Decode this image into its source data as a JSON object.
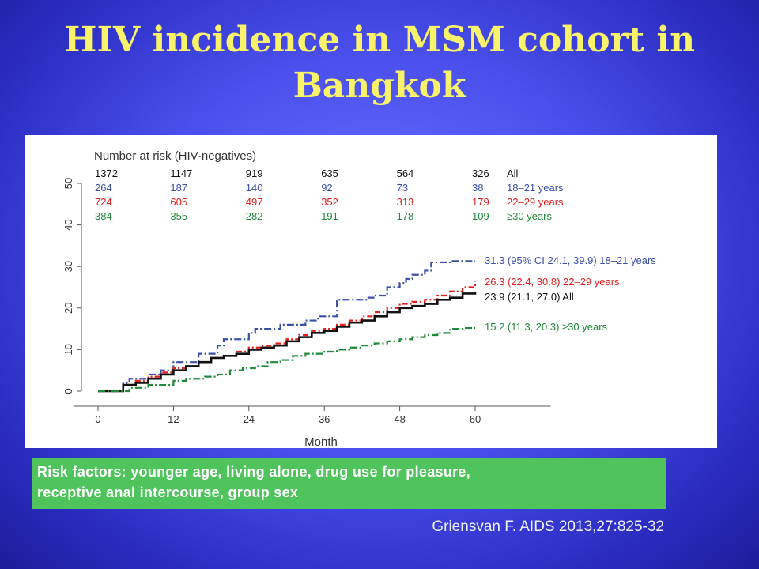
{
  "slide": {
    "title_line1": "HIV incidence in MSM cohort in",
    "title_line2": "Bangkok",
    "risk_factors_line1": "Risk factors: younger age, living alone, drug use for pleasure,",
    "risk_factors_line2": "receptive anal intercourse, group sex",
    "citation": "Griensvan F. AIDS 2013,27:825-32",
    "colors": {
      "title": "#f8f36b",
      "risk_box": "#4fc45c"
    }
  },
  "chart_data": {
    "type": "line",
    "xlabel": "Month",
    "ylabel": "",
    "xlim": [
      0,
      72
    ],
    "ylim": [
      0,
      50
    ],
    "x_ticks": [
      0,
      12,
      24,
      36,
      48,
      60
    ],
    "y_ticks": [
      0,
      10,
      20,
      30,
      40,
      50
    ],
    "risk_table": {
      "title": "Number at risk (HIV-negatives)",
      "rows": [
        {
          "values": [
            "1372",
            "1147",
            "919",
            "635",
            "564",
            "326"
          ],
          "label": "All",
          "color": "#111111"
        },
        {
          "values": [
            "264",
            "187",
            "140",
            "92",
            "73",
            "38"
          ],
          "label": "18–21 years",
          "color": "#3a4fa8"
        },
        {
          "values": [
            "724",
            "605",
            "497",
            "352",
            "313",
            "179"
          ],
          "label": "22–29 years",
          "color": "#e3201c"
        },
        {
          "values": [
            "384",
            "355",
            "282",
            "191",
            "178",
            "109"
          ],
          "label": "≥30 years",
          "color": "#1f8a3a"
        }
      ]
    },
    "series": [
      {
        "color": "#3a4fa8",
        "dash": "9 3 2 3",
        "end_label": "31.3 (95% CI 24.1, 39.9) 18–21 years",
        "points": [
          [
            0,
            0
          ],
          [
            3,
            0
          ],
          [
            4,
            2
          ],
          [
            5,
            3
          ],
          [
            8,
            4
          ],
          [
            10,
            5
          ],
          [
            12,
            7
          ],
          [
            15,
            7
          ],
          [
            16,
            9
          ],
          [
            19,
            9
          ],
          [
            19,
            11
          ],
          [
            20,
            12.5
          ],
          [
            23,
            12.5
          ],
          [
            24,
            14
          ],
          [
            25,
            15
          ],
          [
            28,
            15
          ],
          [
            29,
            16
          ],
          [
            32,
            16
          ],
          [
            33,
            17
          ],
          [
            35,
            18
          ],
          [
            37,
            18
          ],
          [
            38,
            22
          ],
          [
            40,
            22
          ],
          [
            42,
            22
          ],
          [
            43,
            22.5
          ],
          [
            44,
            23
          ],
          [
            46,
            25
          ],
          [
            48,
            26
          ],
          [
            49,
            27
          ],
          [
            50,
            28
          ],
          [
            52,
            29
          ],
          [
            53,
            31
          ],
          [
            56,
            31.3
          ],
          [
            60,
            31.3
          ]
        ]
      },
      {
        "color": "#e3201c",
        "dash": "7 3 2 3",
        "end_label": "26.3 (22.4, 30.8) 22–29 years",
        "points": [
          [
            0,
            0
          ],
          [
            4,
            0
          ],
          [
            4,
            1.5
          ],
          [
            6,
            2.5
          ],
          [
            8,
            3.5
          ],
          [
            10,
            4.5
          ],
          [
            12,
            5.5
          ],
          [
            14,
            6
          ],
          [
            16,
            7
          ],
          [
            18,
            8
          ],
          [
            20,
            8.5
          ],
          [
            22,
            9.5
          ],
          [
            24,
            10.5
          ],
          [
            26,
            11
          ],
          [
            28,
            11.5
          ],
          [
            30,
            12.5
          ],
          [
            32,
            13.5
          ],
          [
            34,
            14.5
          ],
          [
            36,
            15
          ],
          [
            38,
            16
          ],
          [
            40,
            17
          ],
          [
            42,
            18
          ],
          [
            44,
            19
          ],
          [
            46,
            20
          ],
          [
            48,
            21
          ],
          [
            50,
            21.5
          ],
          [
            52,
            22
          ],
          [
            54,
            23
          ],
          [
            56,
            24
          ],
          [
            58,
            25
          ],
          [
            60,
            26.3
          ]
        ]
      },
      {
        "color": "#111111",
        "dash": "",
        "end_label": "23.9 (21.1, 27.0) All",
        "points": [
          [
            0,
            0
          ],
          [
            4,
            0
          ],
          [
            4,
            1.5
          ],
          [
            6,
            2
          ],
          [
            8,
            3
          ],
          [
            10,
            4
          ],
          [
            12,
            5
          ],
          [
            14,
            6
          ],
          [
            16,
            7
          ],
          [
            18,
            8
          ],
          [
            20,
            8.5
          ],
          [
            22,
            9
          ],
          [
            24,
            10
          ],
          [
            26,
            10.5
          ],
          [
            28,
            11
          ],
          [
            30,
            12
          ],
          [
            32,
            13
          ],
          [
            34,
            14
          ],
          [
            36,
            14.5
          ],
          [
            38,
            15.5
          ],
          [
            40,
            16.5
          ],
          [
            42,
            17
          ],
          [
            44,
            18
          ],
          [
            46,
            19
          ],
          [
            48,
            20
          ],
          [
            50,
            20.5
          ],
          [
            52,
            21
          ],
          [
            54,
            22
          ],
          [
            56,
            22.5
          ],
          [
            58,
            23.5
          ],
          [
            60,
            23.9
          ]
        ]
      },
      {
        "color": "#1f8a3a",
        "dash": "9 3 2 3",
        "end_label": "15.2 (11.3, 20.3) ≥30 years",
        "points": [
          [
            0,
            0
          ],
          [
            5,
            0
          ],
          [
            5,
            0.8
          ],
          [
            8,
            1.5
          ],
          [
            12,
            2.5
          ],
          [
            14,
            3
          ],
          [
            17,
            3.5
          ],
          [
            19,
            4
          ],
          [
            21,
            5
          ],
          [
            23,
            5.5
          ],
          [
            25,
            6
          ],
          [
            27,
            7
          ],
          [
            29,
            7.5
          ],
          [
            31,
            8.5
          ],
          [
            33,
            9
          ],
          [
            36,
            9.5
          ],
          [
            38,
            10
          ],
          [
            40,
            10.5
          ],
          [
            42,
            11
          ],
          [
            44,
            11.5
          ],
          [
            46,
            12
          ],
          [
            48,
            12.5
          ],
          [
            50,
            13
          ],
          [
            52,
            13.5
          ],
          [
            54,
            14
          ],
          [
            56,
            15
          ],
          [
            58,
            15.2
          ],
          [
            60,
            15.2
          ]
        ]
      }
    ]
  }
}
